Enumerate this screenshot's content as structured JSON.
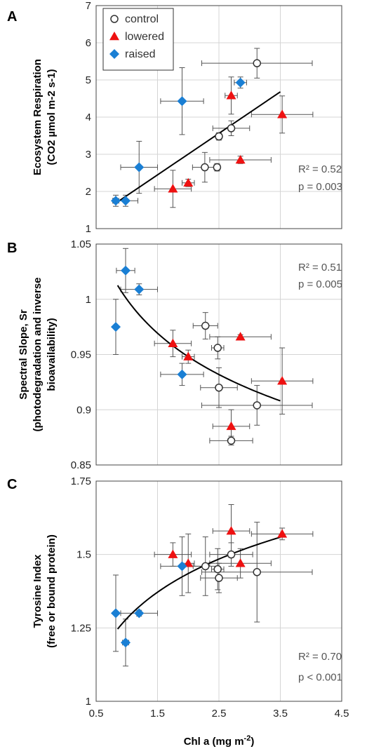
{
  "colors": {
    "control": "#333333",
    "lowered": "#ee1111",
    "raised": "#1a7fd4",
    "fit": "#000000",
    "grid": "#d4d4d4",
    "errorbar": "#555555"
  },
  "legend": [
    {
      "key": "control",
      "label": "control",
      "marker": "open-circle"
    },
    {
      "key": "lowered",
      "label": "lowered",
      "marker": "red-triangle"
    },
    {
      "key": "raised",
      "label": "raised",
      "marker": "blue-diamond"
    }
  ],
  "xlabel_main": "Chl a (mg m",
  "xlabel_sup": "-2",
  "xlabel_end": ")",
  "chart_data": [
    {
      "type": "scatter",
      "panel": "A",
      "ylabel_line1": "Ecosystem Respiration",
      "ylabel_line2": "(CO2 µmol m-2 s-1)",
      "xlim": [
        0.5,
        4.5
      ],
      "ylim": [
        1,
        7
      ],
      "xticks": [
        "0.5",
        "1.5",
        "2.5",
        "3.5",
        "4.5"
      ],
      "yticks": [
        "1",
        "2",
        "3",
        "4",
        "5",
        "6",
        "7"
      ],
      "grid": true,
      "legend_position": "top-left",
      "stats": [
        "R² = 0.52",
        "p = 0.003"
      ],
      "fit": {
        "kind": "linear",
        "x": [
          0.85,
          3.5
        ],
        "y": [
          1.72,
          4.68
        ]
      },
      "series": [
        {
          "name": "control",
          "points": [
            {
              "x": 3.12,
              "y": 5.45,
              "xerr": 0.9,
              "yerr": 0.4
            },
            {
              "x": 2.5,
              "y": 3.48,
              "xerr": 0.05,
              "yerr": 0.1
            },
            {
              "x": 2.7,
              "y": 3.7,
              "xerr": 0.3,
              "yerr": 0.2
            },
            {
              "x": 2.27,
              "y": 2.65,
              "xerr": 0.2,
              "yerr": 0.4
            },
            {
              "x": 2.47,
              "y": 2.65,
              "xerr": 0.05,
              "yerr": 0.1
            }
          ]
        },
        {
          "name": "lowered",
          "points": [
            {
              "x": 2.7,
              "y": 4.58,
              "xerr": 0.1,
              "yerr": 0.5
            },
            {
              "x": 3.53,
              "y": 4.07,
              "xerr": 0.5,
              "yerr": 0.5
            },
            {
              "x": 2.85,
              "y": 2.85,
              "xerr": 0.5,
              "yerr": 0.1
            },
            {
              "x": 2.0,
              "y": 2.23,
              "xerr": 0.1,
              "yerr": 0.1
            },
            {
              "x": 1.75,
              "y": 2.07,
              "xerr": 0.3,
              "yerr": 0.5
            }
          ]
        },
        {
          "name": "raised",
          "points": [
            {
              "x": 2.85,
              "y": 4.93,
              "xerr": 0.1,
              "yerr": 0.15
            },
            {
              "x": 1.9,
              "y": 4.43,
              "xerr": 0.35,
              "yerr": 0.9
            },
            {
              "x": 1.2,
              "y": 2.65,
              "xerr": 0.3,
              "yerr": 0.7
            },
            {
              "x": 0.98,
              "y": 1.75,
              "xerr": 0.2,
              "yerr": 0.15
            },
            {
              "x": 0.82,
              "y": 1.75,
              "xerr": 0.05,
              "yerr": 0.15
            }
          ]
        }
      ]
    },
    {
      "type": "scatter",
      "panel": "B",
      "ylabel_line1": "Spectral Slope, Sr",
      "ylabel_line2": "(photodegradation and inverse",
      "ylabel_line3": "bioavailability)",
      "xlim": [
        0.5,
        4.5
      ],
      "ylim": [
        0.85,
        1.05
      ],
      "xticks": [
        "0.5",
        "1.5",
        "2.5",
        "3.5",
        "4.5"
      ],
      "yticks": [
        "0.85",
        "0.9",
        "0.95",
        "1",
        "1.05"
      ],
      "grid": true,
      "stats": [
        "R² = 0.51",
        "p = 0.005"
      ],
      "fit": {
        "kind": "power",
        "x0": 0.85,
        "x1": 3.5,
        "a": 1.0,
        "b": -0.077
      },
      "series": [
        {
          "name": "control",
          "points": [
            {
              "x": 2.28,
              "y": 0.976,
              "xerr": 0.2,
              "yerr": 0.012
            },
            {
              "x": 2.48,
              "y": 0.956,
              "xerr": 0.1,
              "yerr": 0.01
            },
            {
              "x": 2.5,
              "y": 0.92,
              "xerr": 0.3,
              "yerr": 0.018
            },
            {
              "x": 3.12,
              "y": 0.904,
              "xerr": 0.9,
              "yerr": 0.018
            },
            {
              "x": 2.7,
              "y": 0.872,
              "xerr": 0.35,
              "yerr": 0.004
            }
          ]
        },
        {
          "name": "lowered",
          "points": [
            {
              "x": 2.85,
              "y": 0.966,
              "xerr": 0.5,
              "yerr": 0.002
            },
            {
              "x": 1.75,
              "y": 0.96,
              "xerr": 0.3,
              "yerr": 0.012
            },
            {
              "x": 2.0,
              "y": 0.948,
              "xerr": 0.1,
              "yerr": 0.006
            },
            {
              "x": 3.53,
              "y": 0.926,
              "xerr": 0.5,
              "yerr": 0.03
            },
            {
              "x": 2.7,
              "y": 0.885,
              "xerr": 0.3,
              "yerr": 0.015
            }
          ]
        },
        {
          "name": "raised",
          "points": [
            {
              "x": 0.98,
              "y": 1.026,
              "xerr": 0.15,
              "yerr": 0.02
            },
            {
              "x": 1.2,
              "y": 1.009,
              "xerr": 0.3,
              "yerr": 0.005
            },
            {
              "x": 0.82,
              "y": 0.975,
              "xerr": 0.02,
              "yerr": 0.025
            },
            {
              "x": 1.9,
              "y": 0.932,
              "xerr": 0.35,
              "yerr": 0.01
            }
          ]
        }
      ]
    },
    {
      "type": "scatter",
      "panel": "C",
      "ylabel_line1": "Tyrosine Index",
      "ylabel_line2": "(free or bound protein)",
      "xlim": [
        0.5,
        4.5
      ],
      "ylim": [
        1,
        1.75
      ],
      "xticks": [
        "0.5",
        "1.5",
        "2.5",
        "3.5",
        "4.5"
      ],
      "yticks": [
        "1",
        "1.25",
        "1.5",
        "1.75"
      ],
      "grid": true,
      "stats": [
        "R² = 0.70",
        "p < 0.001"
      ],
      "fit": {
        "kind": "log",
        "x0": 0.85,
        "x1": 3.5,
        "a": 1.282,
        "b": 0.221
      },
      "series": [
        {
          "name": "control",
          "points": [
            {
              "x": 2.7,
              "y": 1.5,
              "xerr": 0.35,
              "yerr": 0.04
            },
            {
              "x": 2.28,
              "y": 1.46,
              "xerr": 0.2,
              "yerr": 0.1
            },
            {
              "x": 2.48,
              "y": 1.45,
              "xerr": 0.1,
              "yerr": 0.07
            },
            {
              "x": 2.5,
              "y": 1.42,
              "xerr": 0.3,
              "yerr": 0.05
            },
            {
              "x": 3.12,
              "y": 1.44,
              "xerr": 0.9,
              "yerr": 0.17
            }
          ]
        },
        {
          "name": "lowered",
          "points": [
            {
              "x": 2.7,
              "y": 1.58,
              "xerr": 0.3,
              "yerr": 0.09
            },
            {
              "x": 3.53,
              "y": 1.57,
              "xerr": 0.5,
              "yerr": 0.02
            },
            {
              "x": 1.75,
              "y": 1.5,
              "xerr": 0.3,
              "yerr": 0.04
            },
            {
              "x": 2.0,
              "y": 1.47,
              "xerr": 0.1,
              "yerr": 0.1
            },
            {
              "x": 2.85,
              "y": 1.47,
              "xerr": 0.5,
              "yerr": 0.05
            }
          ]
        },
        {
          "name": "raised",
          "points": [
            {
              "x": 1.9,
              "y": 1.46,
              "xerr": 0.35,
              "yerr": 0.1
            },
            {
              "x": 0.82,
              "y": 1.3,
              "xerr": 0.02,
              "yerr": 0.13
            },
            {
              "x": 1.2,
              "y": 1.3,
              "xerr": 0.3,
              "yerr": 0.01
            },
            {
              "x": 0.98,
              "y": 1.2,
              "xerr": 0.05,
              "yerr": 0.08
            }
          ]
        }
      ]
    }
  ]
}
